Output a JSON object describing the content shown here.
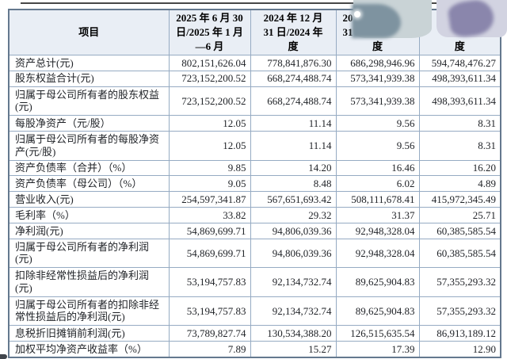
{
  "page": {
    "background": "#ffffff",
    "header_bg": "#e9eef5",
    "border_color": "#96abc3",
    "text_color": "#1e2126"
  },
  "censor_blobs": [
    {
      "name": "gray-blob",
      "base_color": "#c9d3d6",
      "dark_color": "#7e93a0"
    },
    {
      "name": "purple-blob",
      "base_color": "#d2d3e1",
      "dark_color": "#8a86ac"
    }
  ],
  "table": {
    "headers": [
      {
        "lines": [
          "项目"
        ]
      },
      {
        "lines": [
          "2025 年 6 月 30",
          "日/2025 年 1 月",
          "—6 月"
        ]
      },
      {
        "lines": [
          "2024 年 12 月",
          "31 日/2024 年",
          "度"
        ]
      },
      {
        "lines": [
          "20",
          "31",
          "度"
        ],
        "obscured": true
      },
      {
        "lines": [
          "",
          "",
          "度"
        ],
        "obscured": true
      }
    ],
    "rows": [
      {
        "label": "资产总计(元)",
        "values": [
          "802,151,626.04",
          "778,841,876.30",
          "686,298,946.96",
          "594,748,476.27"
        ]
      },
      {
        "label": "股东权益合计(元)",
        "values": [
          "723,152,200.52",
          "668,274,488.74",
          "573,341,939.38",
          "498,393,611.34"
        ]
      },
      {
        "label": "归属于母公司所有者的股东权益(元)",
        "values": [
          "723,152,200.52",
          "668,274,488.74",
          "573,341,939.38",
          "498,393,611.34"
        ]
      },
      {
        "label": "每股净资产（元/股）",
        "values": [
          "12.05",
          "11.14",
          "9.56",
          "8.31"
        ]
      },
      {
        "label": "归属于母公司所有者的每股净资产(元/股)",
        "values": [
          "12.05",
          "11.14",
          "9.56",
          "8.31"
        ]
      },
      {
        "label": "资产负债率（合并）（%）",
        "values": [
          "9.85",
          "14.20",
          "16.46",
          "16.20"
        ]
      },
      {
        "label": "资产负债率（母公司）（%）",
        "values": [
          "9.05",
          "8.48",
          "6.02",
          "4.89"
        ]
      },
      {
        "label": "营业收入(元)",
        "values": [
          "254,597,341.87",
          "567,651,693.42",
          "508,111,678.41",
          "415,972,345.49"
        ]
      },
      {
        "label": "毛利率（%）",
        "values": [
          "33.82",
          "29.32",
          "31.37",
          "25.71"
        ]
      },
      {
        "label": "净利润(元)",
        "values": [
          "54,869,699.71",
          "94,806,039.36",
          "92,948,328.04",
          "60,385,585.54"
        ]
      },
      {
        "label": "归属于母公司所有者的净利润(元)",
        "values": [
          "54,869,699.71",
          "94,806,039.36",
          "92,948,328.04",
          "60,385,585.54"
        ]
      },
      {
        "label": "扣除非经常性损益后的净利润(元)",
        "values": [
          "53,194,757.83",
          "92,134,732.74",
          "89,625,904.83",
          "57,355,293.32"
        ]
      },
      {
        "label": "归属于母公司所有者的扣除非经常性损益后的净利润(元)",
        "values": [
          "53,194,757.83",
          "92,134,732.74",
          "89,625,904.83",
          "57,355,293.32"
        ]
      },
      {
        "label": "息税折旧摊销前利润(元)",
        "values": [
          "73,789,827.74",
          "130,534,388.20",
          "126,515,635.54",
          "86,913,189.12"
        ]
      },
      {
        "label": "加权平均净资产收益率（%）",
        "values": [
          "7.89",
          "15.27",
          "17.39",
          "12.90"
        ]
      }
    ]
  }
}
